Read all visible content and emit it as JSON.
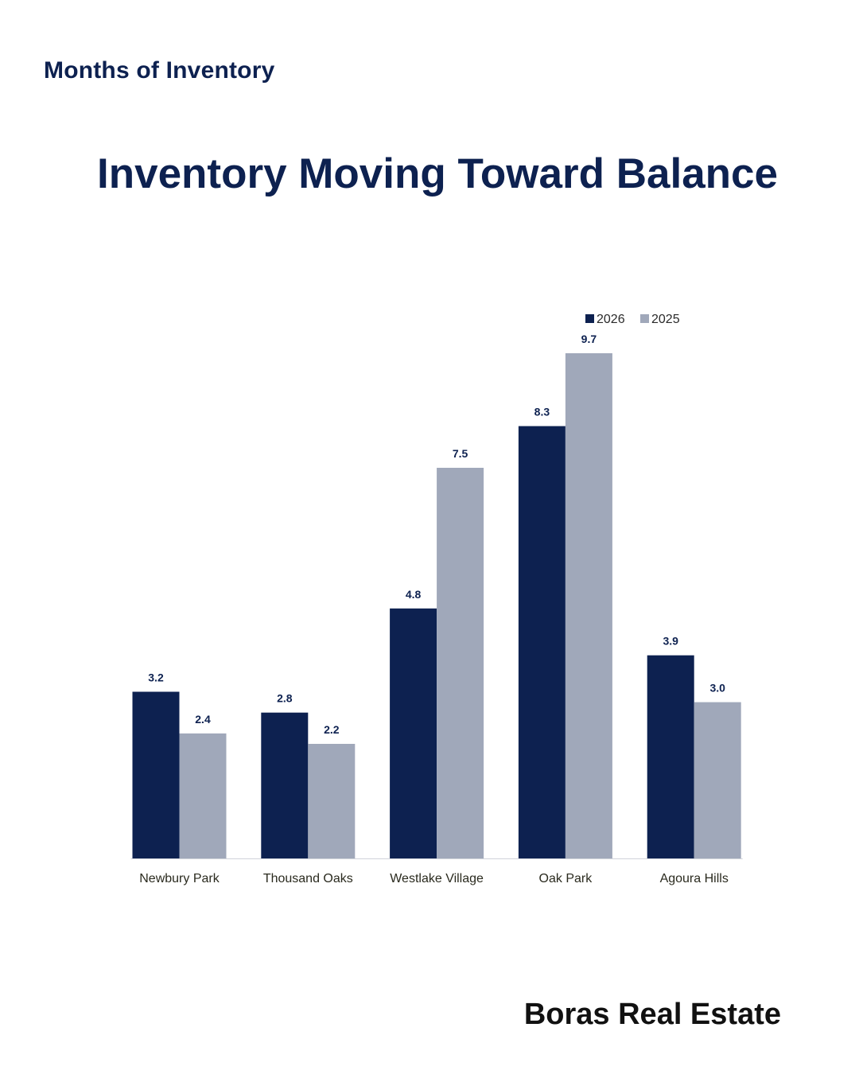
{
  "header": {
    "section_label": "Months of Inventory",
    "headline": "Inventory Moving Toward Balance"
  },
  "footer": {
    "brand": "Boras Real Estate"
  },
  "colors": {
    "series_2026": "#0d2150",
    "series_2025": "#a0a8ba",
    "axis_text": "#2a2a1e",
    "label_text": "#0d2150"
  },
  "chart_data": {
    "type": "bar",
    "categories": [
      "Newbury Park",
      "Thousand Oaks",
      "Westlake Village",
      "Oak Park",
      "Agoura Hills"
    ],
    "series": [
      {
        "name": "2026",
        "values": [
          3.2,
          2.8,
          4.8,
          8.3,
          3.9
        ]
      },
      {
        "name": "2025",
        "values": [
          2.4,
          2.2,
          7.5,
          9.7,
          3.0
        ]
      }
    ],
    "ylim": [
      0,
      9.7
    ],
    "grid": false,
    "legend": "top-right",
    "data_labels": true
  }
}
